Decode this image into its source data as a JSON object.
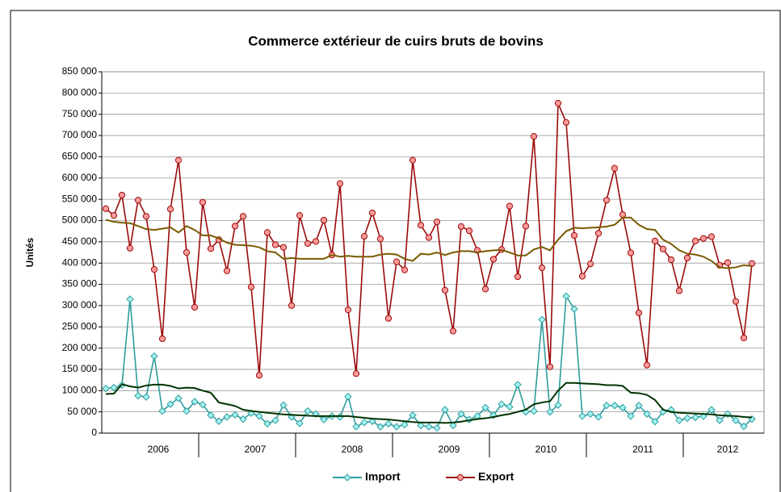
{
  "chart_data": {
    "type": "line",
    "title": "Commerce extérieur de cuirs bruts de bovins",
    "y_label": "Unités",
    "categories": [
      null,
      null,
      null,
      null,
      null,
      null,
      null,
      null,
      null,
      null,
      null,
      null,
      null,
      null,
      null,
      null,
      null,
      null,
      null,
      null,
      null,
      null,
      null,
      null,
      null,
      null,
      null,
      null,
      null,
      null,
      null,
      null,
      null,
      null,
      null,
      null,
      null,
      null,
      null,
      null,
      null,
      null,
      null,
      null,
      null,
      null,
      null,
      null,
      null,
      null,
      null,
      null,
      null,
      null,
      null,
      null,
      null,
      null,
      null,
      null,
      null,
      null,
      null,
      null,
      null,
      null,
      null,
      null,
      null,
      null,
      null,
      null,
      null,
      null,
      null,
      null,
      null,
      null,
      null,
      null,
      null
    ],
    "year_labels": [
      "2006",
      "2007",
      "2008",
      "2009",
      "2010",
      "2011",
      "2012"
    ],
    "ylim": [
      0,
      850000
    ],
    "yticks": [
      {
        "value": 0,
        "label": "0"
      },
      {
        "value": 50000,
        "label": "50 000"
      },
      {
        "value": 100000,
        "label": "100 000"
      },
      {
        "value": 150000,
        "label": "150 000"
      },
      {
        "value": 200000,
        "label": "200 000"
      },
      {
        "value": 250000,
        "label": "250 000"
      },
      {
        "value": 300000,
        "label": "300 000"
      },
      {
        "value": 350000,
        "label": "350 000"
      },
      {
        "value": 400000,
        "label": "400 000"
      },
      {
        "value": 450000,
        "label": "450 000"
      },
      {
        "value": 500000,
        "label": "500 000"
      },
      {
        "value": 550000,
        "label": "550 000"
      },
      {
        "value": 600000,
        "label": "600 000"
      },
      {
        "value": 650000,
        "label": "650 000"
      },
      {
        "value": 700000,
        "label": "700 000"
      },
      {
        "value": 750000,
        "label": "750 000"
      },
      {
        "value": 800000,
        "label": "800 000"
      },
      {
        "value": 850000,
        "label": "850 000"
      }
    ],
    "grid": true,
    "legend": "bottom",
    "series": [
      {
        "name": "Import",
        "color": "#2f9c9c",
        "marker": "diamond",
        "marker_fill": "#a6f5f5",
        "values": [
          105000,
          107000,
          113000,
          315000,
          88000,
          85000,
          181000,
          52000,
          68000,
          82000,
          52000,
          74000,
          67000,
          42000,
          28000,
          38000,
          43000,
          33000,
          47000,
          40000,
          22000,
          30000,
          66000,
          38000,
          23000,
          52000,
          45000,
          32000,
          40000,
          38000,
          86000,
          15000,
          25000,
          28000,
          15000,
          22000,
          15000,
          20000,
          42000,
          18000,
          15000,
          12000,
          55000,
          18000,
          45000,
          32000,
          40000,
          60000,
          42000,
          68000,
          62000,
          114000,
          50000,
          52000,
          267000,
          50000,
          66000,
          322000,
          292000,
          40000,
          45000,
          38000,
          65000,
          65000,
          60000,
          40000,
          65000,
          45000,
          27000,
          50000,
          55000,
          30000,
          35000,
          37000,
          40000,
          55000,
          30000,
          45000,
          30000,
          16000,
          33000
        ]
      },
      {
        "name": "Export",
        "color": "#9b0a0a",
        "marker": "circle",
        "marker_fill": "#ff9a9a",
        "values": [
          528000,
          512000,
          560000,
          435000,
          548000,
          510000,
          385000,
          222000,
          527000,
          642000,
          425000,
          296000,
          543000,
          434000,
          455000,
          382000,
          487000,
          510000,
          344000,
          136000,
          472000,
          443000,
          437000,
          300000,
          512000,
          446000,
          451000,
          501000,
          419000,
          587000,
          290000,
          140000,
          463000,
          518000,
          457000,
          270000,
          403000,
          384000,
          642000,
          489000,
          460000,
          497000,
          336000,
          240000,
          486000,
          476000,
          430000,
          339000,
          409000,
          432000,
          534000,
          368000,
          487000,
          698000,
          389000,
          156000,
          776000,
          731000,
          465000,
          369000,
          398000,
          470000,
          548000,
          623000,
          514000,
          424000,
          283000,
          160000,
          452000,
          433000,
          408000,
          335000,
          412000,
          452000,
          458000,
          462000,
          395000,
          401000,
          310000,
          224000,
          399000
        ]
      },
      {
        "color": "#003300",
        "values": [
          92000,
          93000,
          115000,
          110000,
          107000,
          112000,
          114000,
          114000,
          111000,
          105000,
          107000,
          106000,
          100000,
          95000,
          72000,
          68000,
          64000,
          55000,
          52000,
          50000,
          48000,
          46000,
          44000,
          43000,
          42000,
          41000,
          40000,
          40000,
          40000,
          40000,
          40000,
          38000,
          36000,
          34000,
          33000,
          32000,
          30000,
          28000,
          26000,
          25000,
          25000,
          25000,
          24000,
          25000,
          27000,
          30000,
          33000,
          35000,
          38000,
          42000,
          45000,
          50000,
          55000,
          68000,
          72000,
          75000,
          100000,
          118000,
          118000,
          117000,
          116000,
          115000,
          113000,
          113000,
          111000,
          95000,
          94000,
          90000,
          78000,
          55000,
          50000,
          48000,
          47000,
          46000,
          45000,
          44000,
          42000,
          41000,
          40000,
          38000,
          37000
        ]
      },
      {
        "color": "#7a5a00",
        "values": [
          502000,
          497000,
          495000,
          494000,
          487000,
          480000,
          478000,
          481000,
          484000,
          472000,
          487000,
          478000,
          465000,
          465000,
          458000,
          448000,
          443000,
          442000,
          441000,
          437000,
          428000,
          425000,
          410000,
          412000,
          410000,
          410000,
          410000,
          410000,
          419000,
          415000,
          417000,
          415000,
          415000,
          415000,
          420000,
          422000,
          420000,
          410000,
          405000,
          422000,
          420000,
          425000,
          419000,
          425000,
          428000,
          428000,
          425000,
          428000,
          430000,
          431000,
          425000,
          418000,
          418000,
          432000,
          438000,
          430000,
          455000,
          475000,
          483000,
          482000,
          483000,
          484000,
          486000,
          490000,
          507000,
          507000,
          490000,
          480000,
          478000,
          455000,
          445000,
          430000,
          422000,
          420000,
          415000,
          405000,
          390000,
          388000,
          390000,
          395000,
          393000
        ]
      }
    ]
  }
}
